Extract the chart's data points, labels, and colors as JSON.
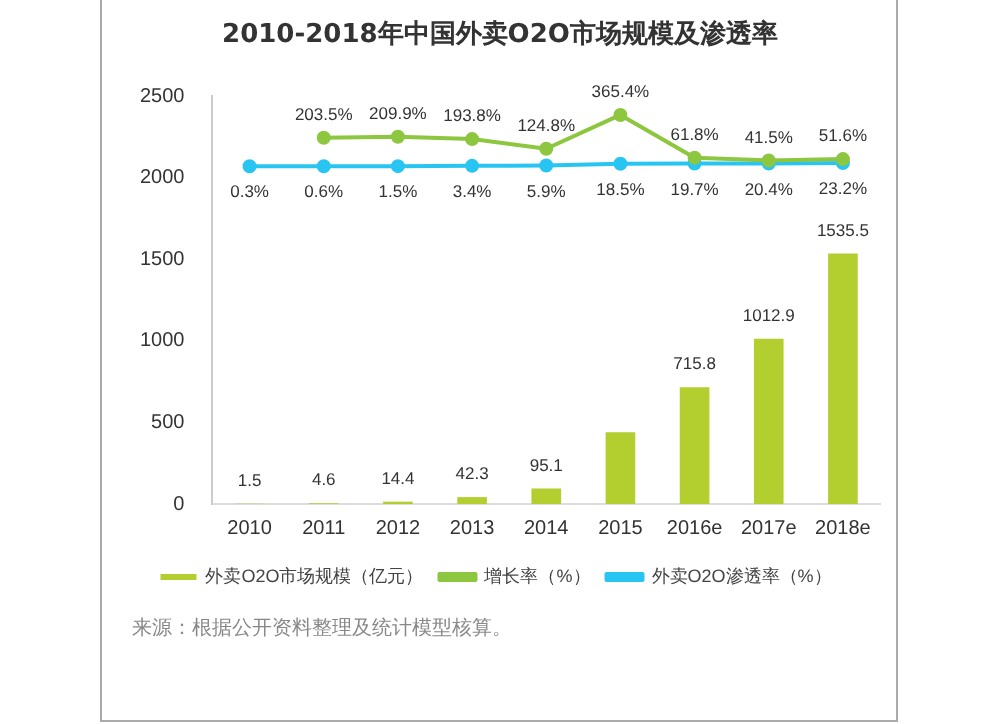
{
  "chart_data": {
    "type": "bar",
    "title": "2010-2018年中国外卖O2O市场规模及渗透率",
    "categories": [
      "2010",
      "2011",
      "2012",
      "2013",
      "2014",
      "2015",
      "2016e",
      "2017e",
      "2018e"
    ],
    "series": [
      {
        "name": "外卖O2O市场规模（亿元）",
        "color": "#b3cf2f",
        "values": [
          1.5,
          4.6,
          14.4,
          42.3,
          95.1,
          440,
          715.8,
          1012.9,
          1535.5
        ],
        "value_labels": [
          "1.5",
          "4.6",
          "14.4",
          "42.3",
          "95.1",
          null,
          "715.8",
          "1012.9",
          "1535.5"
        ]
      },
      {
        "name": "增长率（%）",
        "type": "line",
        "axis": "y2",
        "color": "#8dc63f",
        "values": [
          null,
          203.5,
          209.9,
          193.8,
          124.8,
          365.4,
          61.8,
          41.5,
          51.6
        ],
        "value_labels": [
          null,
          "203.5%",
          "209.9%",
          "193.8%",
          "124.8%",
          "365.4%",
          "61.8%",
          "41.5%",
          "51.6%"
        ]
      },
      {
        "name": "外卖O2O渗透率（%）",
        "type": "line",
        "axis": "y2",
        "color": "#29c5f2",
        "values": [
          0.3,
          0.6,
          1.5,
          3.4,
          5.9,
          18.5,
          19.7,
          20.4,
          23.2
        ],
        "value_labels": [
          "0.3%",
          "0.6%",
          "1.5%",
          "3.4%",
          "5.9%",
          "18.5%",
          "19.7%",
          "20.4%",
          "23.2%"
        ]
      }
    ],
    "ylim": [
      0,
      2500
    ],
    "yticks": [
      0,
      500,
      1000,
      1500,
      2000,
      2500
    ],
    "y2lim": [
      -2400,
      500
    ],
    "grid": false,
    "legend": "bottom",
    "marker": "circle",
    "line_style": "solid",
    "annotations": [
      "来源：根据公开资料整理及统计模型核算。"
    ]
  }
}
